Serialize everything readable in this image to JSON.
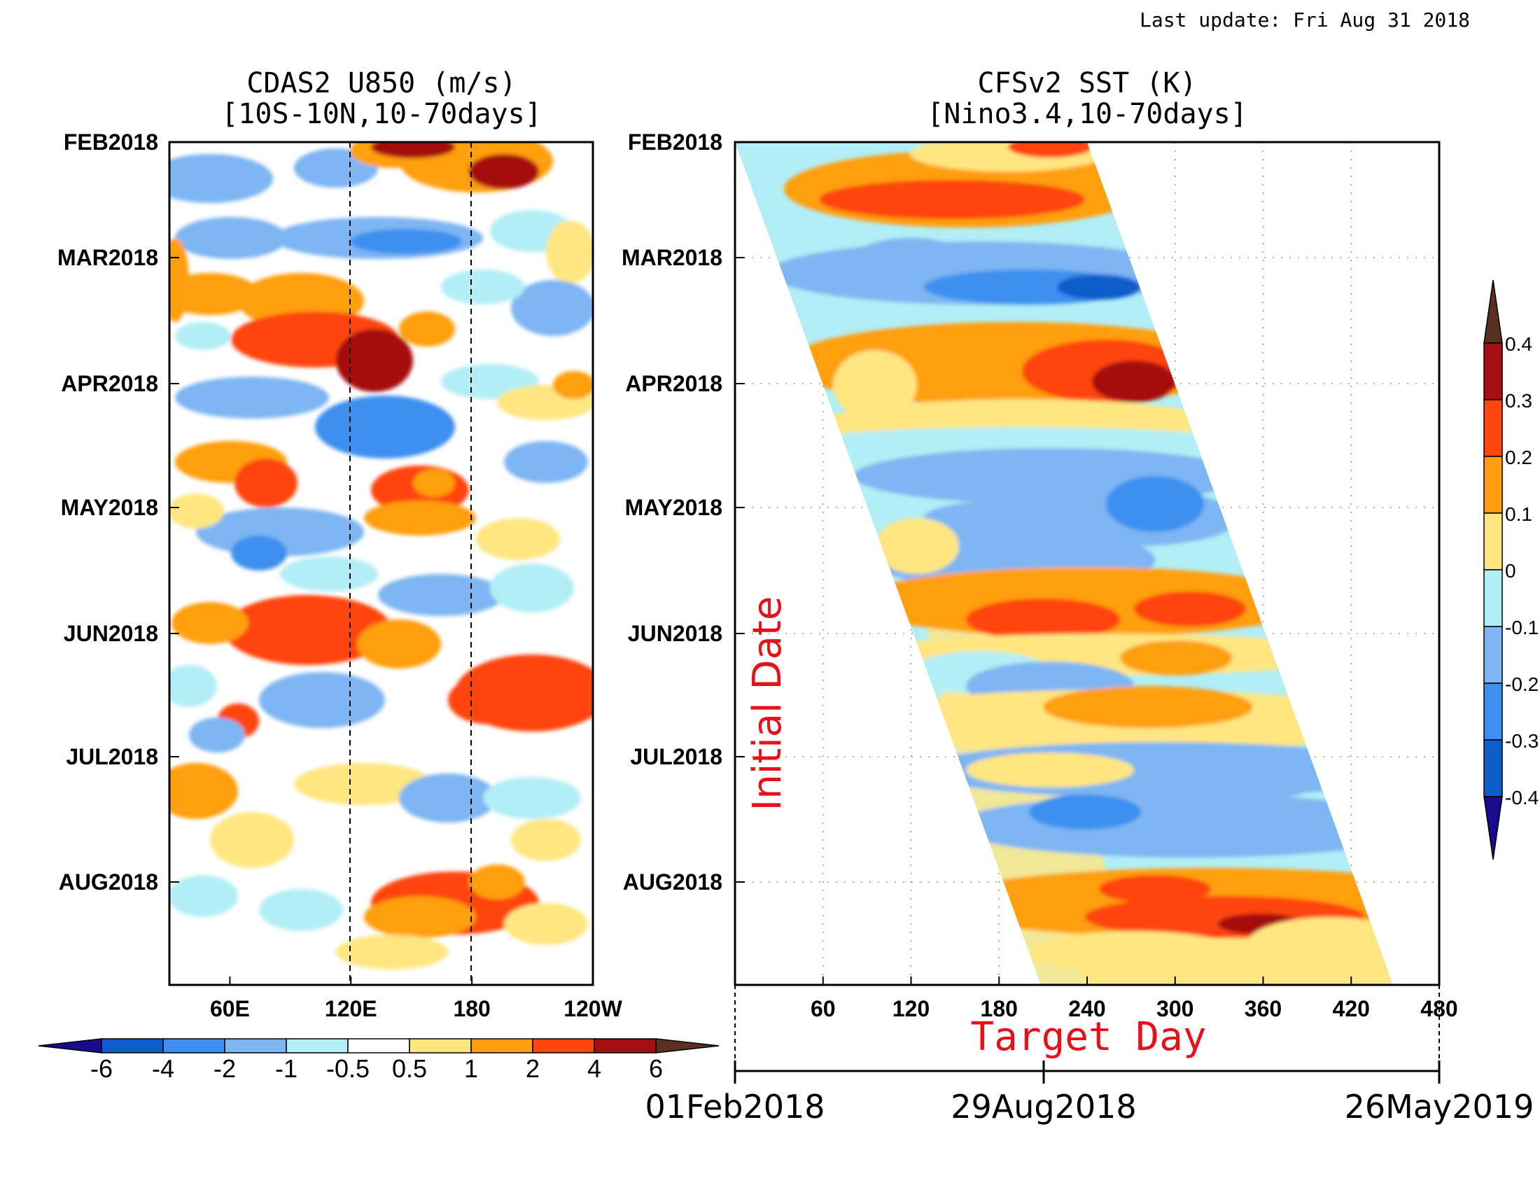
{
  "header": {
    "last_update": "Last update: Fri Aug 31 2018"
  },
  "chart_data": [
    {
      "type": "heatmap",
      "title": "CDAS2 U850 (m/s)",
      "subtitle": "[10S-10N,10-70days]",
      "y_tick_labels": [
        "FEB2018",
        "MAR2018",
        "APR2018",
        "MAY2018",
        "JUN2018",
        "JUL2018",
        "AUG2018"
      ],
      "x_tick_labels": [
        "60E",
        "120E",
        "180",
        "120W"
      ],
      "x_range_deg_east": [
        30,
        240
      ],
      "dashed_reference_lines": [
        "120E",
        "180"
      ],
      "colorbar": {
        "orientation": "horizontal",
        "labels": [
          "-6",
          "-4",
          "-2",
          "-1",
          "-0.5",
          "0.5",
          "1",
          "2",
          "4",
          "6"
        ],
        "levels": [
          -6,
          -4,
          -2,
          -1,
          -0.5,
          0.5,
          1,
          2,
          4,
          6
        ],
        "colors": [
          "#1a0a8c",
          "#0f5ccc",
          "#3d8ff0",
          "#7db6f2",
          "#b2eef5",
          "#ffffff",
          "#ffe680",
          "#ff9f10",
          "#ff4510",
          "#a50f0f",
          "#5c3020"
        ]
      }
    },
    {
      "type": "heatmap",
      "title": "CFSv2 SST (K)",
      "subtitle": "[Nino3.4,10-70days]",
      "y_tick_labels": [
        "FEB2018",
        "MAR2018",
        "APR2018",
        "MAY2018",
        "JUN2018",
        "JUL2018",
        "AUG2018"
      ],
      "x_tick_labels": [
        "60",
        "120",
        "180",
        "240",
        "300",
        "360",
        "420",
        "480"
      ],
      "x_range_days": [
        0,
        480
      ],
      "xlabel": "Target Day",
      "ylabel": "Initial Date",
      "date_axis_labels": [
        "01Feb2018",
        "29Aug2018",
        "26May2019"
      ],
      "forecast_lead_days": [
        0,
        240
      ],
      "colorbar": {
        "orientation": "vertical",
        "labels": [
          "0.4",
          "0.3",
          "0.2",
          "0.1",
          "0",
          "-0.1",
          "-0.2",
          "-0.3",
          "-0.4"
        ],
        "levels": [
          0.4,
          0.3,
          0.2,
          0.1,
          0,
          -0.1,
          -0.2,
          -0.3,
          -0.4
        ],
        "colors": [
          "#5c3020",
          "#a50f0f",
          "#ff4510",
          "#ff9f10",
          "#ffe680",
          "#b2eef5",
          "#7db6f2",
          "#3d8ff0",
          "#0f5ccc",
          "#1a0a8c"
        ]
      }
    }
  ]
}
